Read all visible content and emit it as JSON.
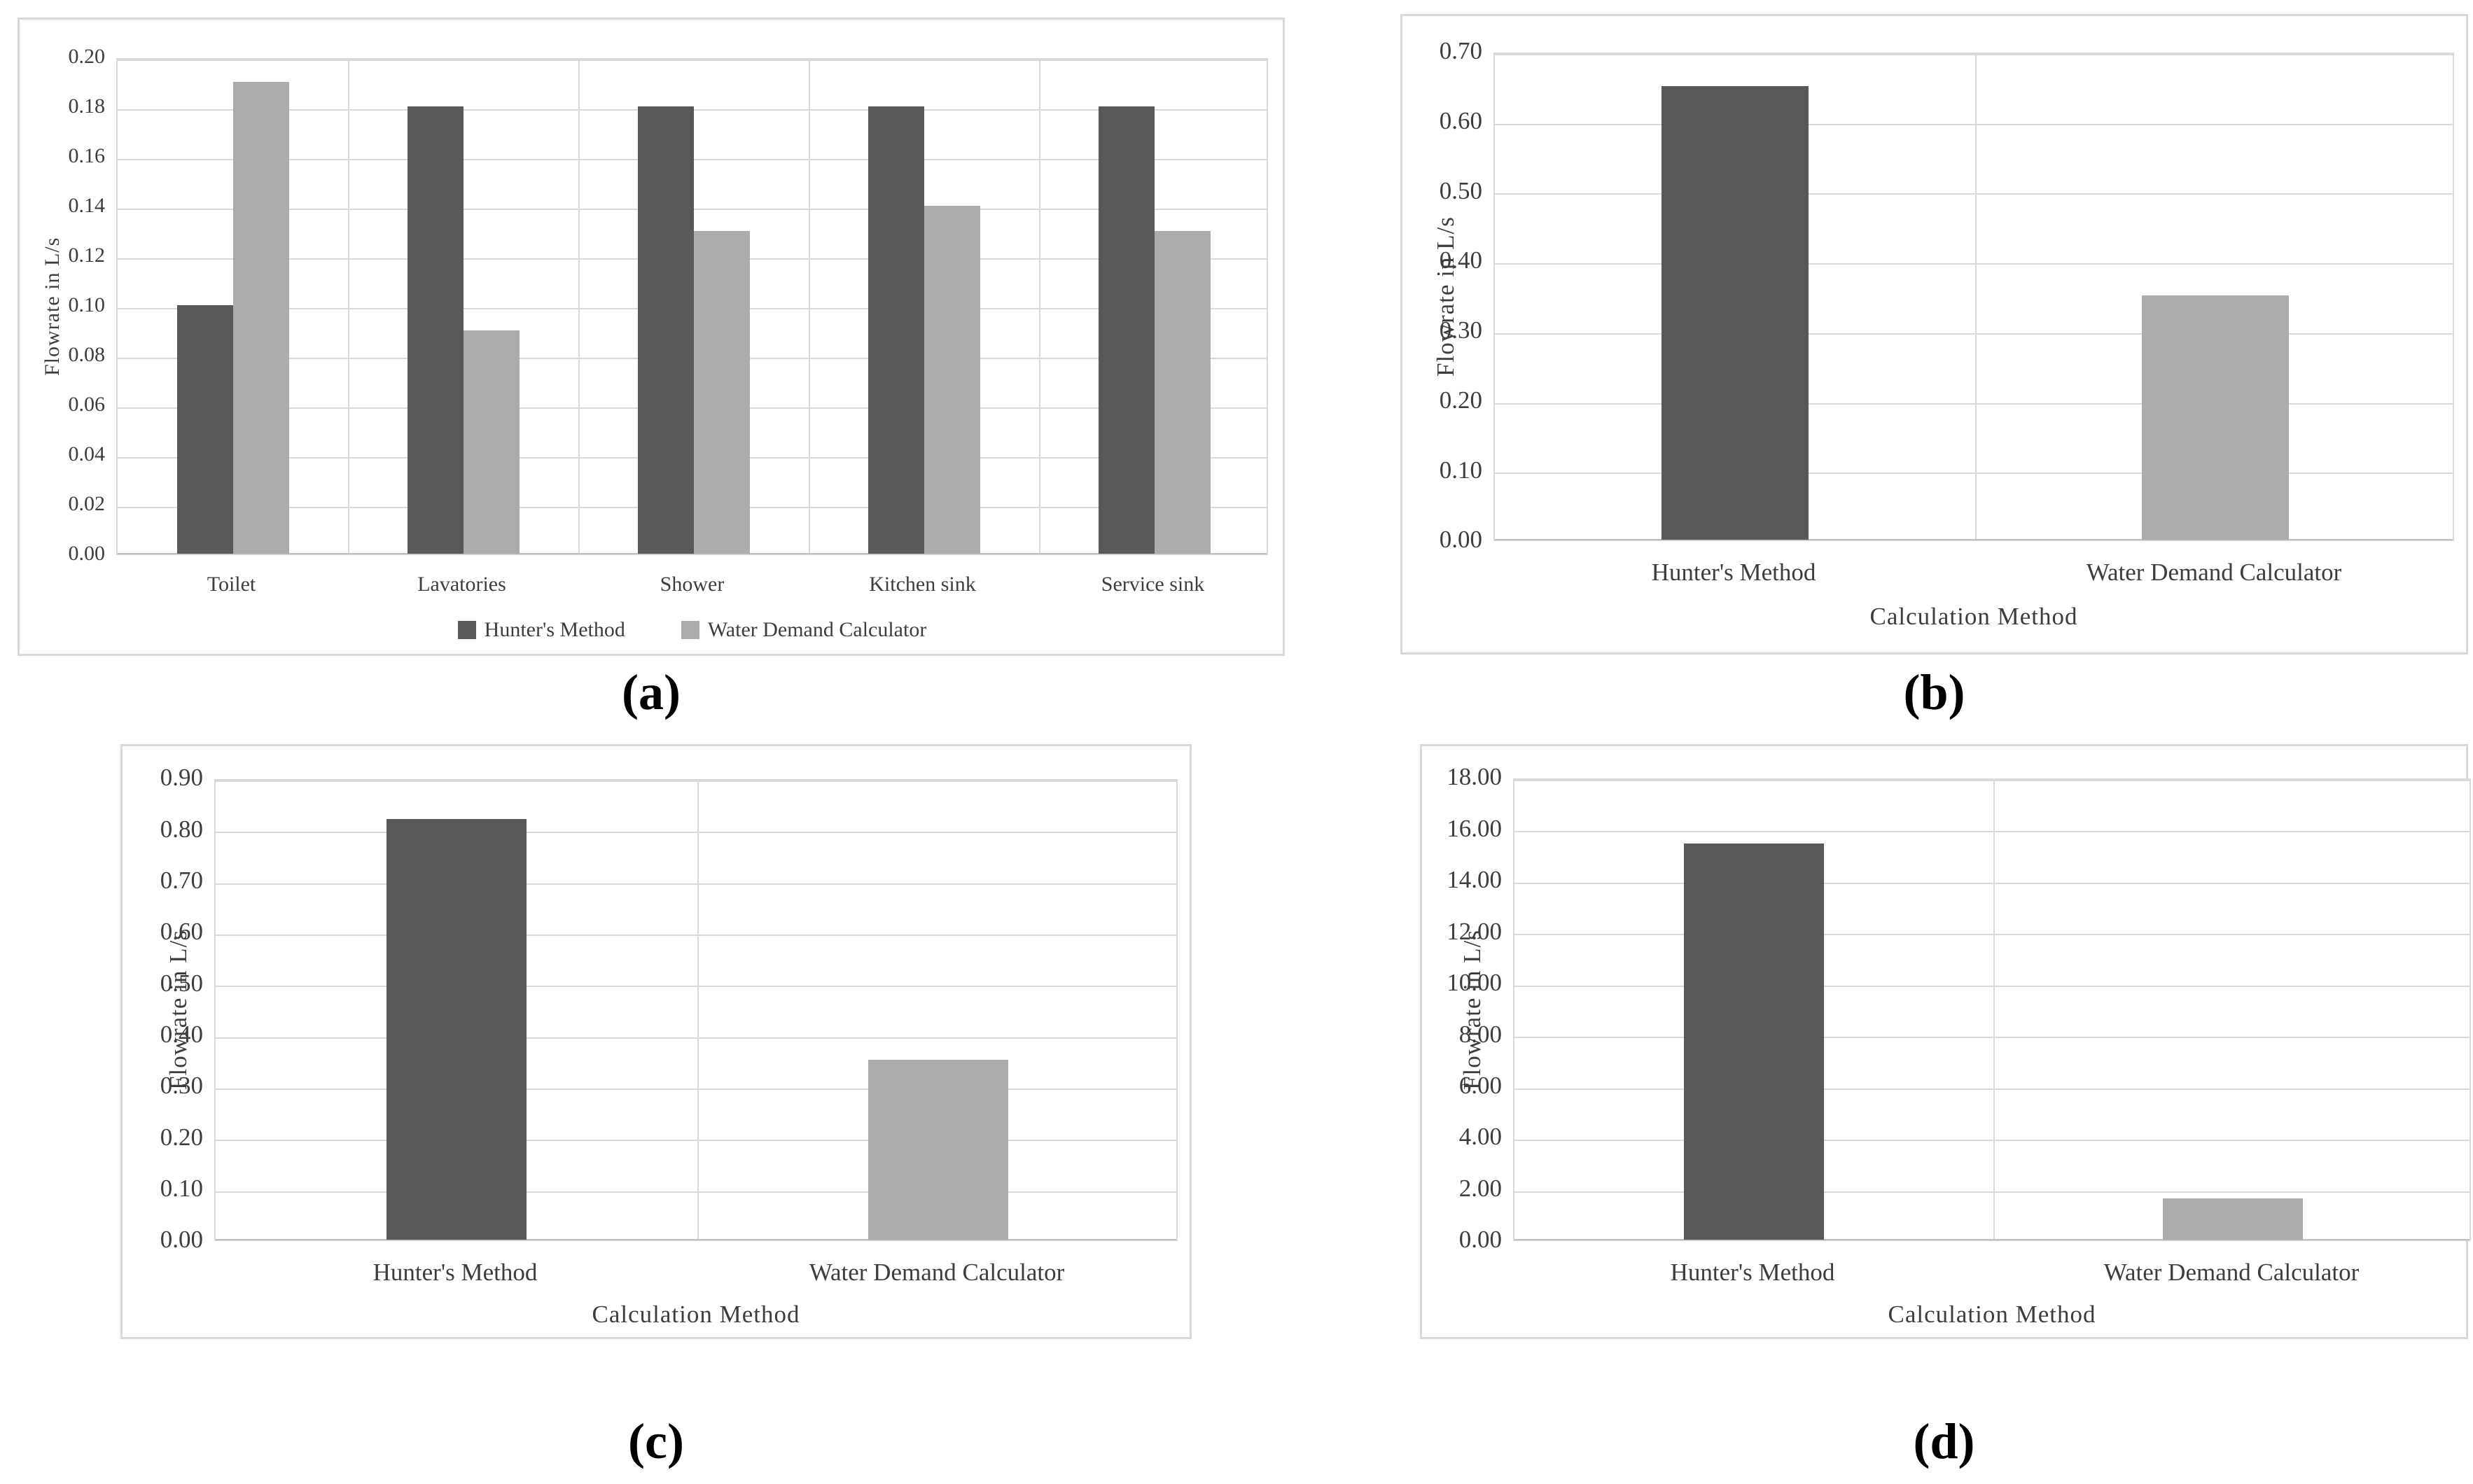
{
  "figure": {
    "description": "Four-panel bar chart figure comparing flowrates from Hunter's Method vs Water Demand Calculator",
    "captions": [
      "(a)",
      "(b)",
      "(c)",
      "(d)"
    ]
  },
  "colors": {
    "hunters_method": "#595959",
    "water_demand_calculator": "#acacac",
    "gridline": "#d9d9d9",
    "axis_text": "#3d3d3d"
  },
  "chart_data": [
    {
      "panel": "(a)",
      "type": "bar",
      "title": "",
      "categories": [
        "Toilet",
        "Lavatories",
        "Shower",
        "Kitchen sink",
        "Service sink"
      ],
      "series": [
        {
          "name": "Hunter's Method",
          "color": "#595959",
          "values": [
            0.1,
            0.18,
            0.18,
            0.18,
            0.18
          ]
        },
        {
          "name": "Water Demand Calculator",
          "color": "#acacac",
          "values": [
            0.19,
            0.09,
            0.13,
            0.14,
            0.13
          ]
        }
      ],
      "xlabel": "",
      "ylabel": "Flowrate in L/s",
      "ylim": [
        0,
        0.2
      ],
      "ytick_step": 0.02,
      "ytick_decimals": 2,
      "grid": true,
      "legend_position": "bottom",
      "legend": [
        "Hunter's Method",
        "Water Demand Calculator"
      ]
    },
    {
      "panel": "(b)",
      "type": "bar",
      "title": "",
      "categories": [
        "Hunter's Method",
        "Water Demand Calculator"
      ],
      "values": [
        0.65,
        0.35
      ],
      "bar_colors": [
        "#595959",
        "#acacac"
      ],
      "xlabel": "Calculation Method",
      "ylabel": "Flowrate in L/s",
      "ylim": [
        0,
        0.7
      ],
      "ytick_step": 0.1,
      "ytick_decimals": 2,
      "grid": true,
      "legend_position": "none"
    },
    {
      "panel": "(c)",
      "type": "bar",
      "title": "",
      "categories": [
        "Hunter's Method",
        "Water Demand Calculator"
      ],
      "values": [
        0.82,
        0.35
      ],
      "bar_colors": [
        "#595959",
        "#acacac"
      ],
      "xlabel": "Calculation Method",
      "ylabel": "Flowrate in L/s",
      "ylim": [
        0,
        0.9
      ],
      "ytick_step": 0.1,
      "ytick_decimals": 2,
      "grid": true,
      "legend_position": "none"
    },
    {
      "panel": "(d)",
      "type": "bar",
      "title": "",
      "categories": [
        "Hunter's Method",
        "Water Demand Calculator"
      ],
      "values": [
        15.4,
        1.6
      ],
      "bar_colors": [
        "#595959",
        "#acacac"
      ],
      "xlabel": "Calculation Method",
      "ylabel": "Flowrate in L/s",
      "ylim": [
        0,
        18.0
      ],
      "ytick_step": 2.0,
      "ytick_decimals": 2,
      "grid": true,
      "legend_position": "none"
    }
  ]
}
